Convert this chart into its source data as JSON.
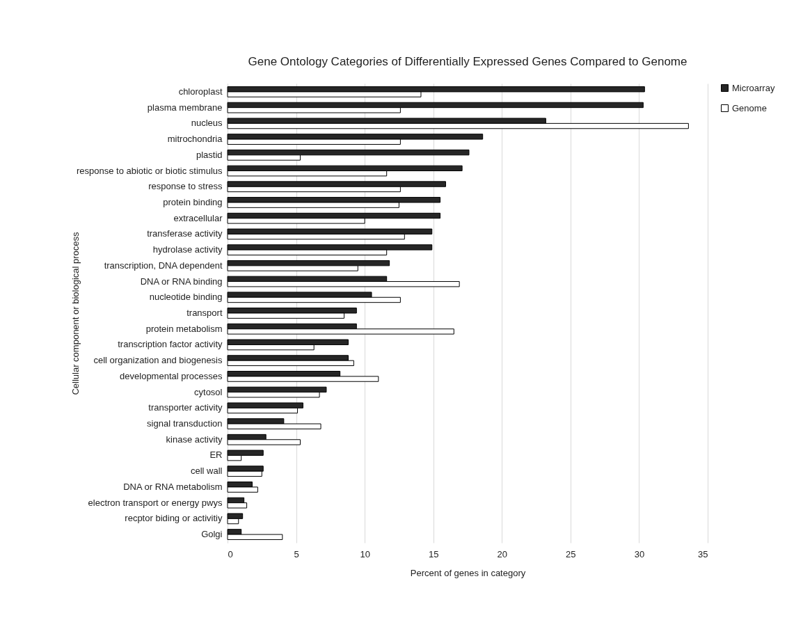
{
  "chart_data": {
    "type": "bar",
    "orientation": "horizontal",
    "title": "Gene Ontology Categories of Differentially Expressed Genes Compared to Genome",
    "xlabel": "Percent of genes in category",
    "ylabel": "Cellular component or biological process",
    "categories": [
      "chloroplast",
      "plasma membrane",
      "nucleus",
      "mitrochondria",
      "plastid",
      "response to abiotic or biotic stimulus",
      "response to stress",
      "protein binding",
      "extracellular",
      "transferase activity",
      "hydrolase activity",
      "transcription, DNA dependent",
      "DNA or RNA binding",
      "nucleotide binding",
      "transport",
      "protein metabolism",
      "transcription factor activity",
      "cell organization and biogenesis",
      "developmental processes",
      "cytosol",
      "transporter activity",
      "signal transduction",
      "kinase activity",
      "ER",
      "cell wall",
      "DNA or RNA metabolism",
      "electron transport or energy pwys",
      "recptor biding or activitiy",
      "Golgi"
    ],
    "series": [
      {
        "name": "Microarray",
        "color": "#262626",
        "values": [
          30.4,
          30.3,
          23.2,
          18.6,
          17.6,
          17.1,
          15.9,
          15.5,
          15.5,
          14.9,
          14.9,
          11.8,
          11.6,
          10.5,
          9.4,
          9.4,
          8.8,
          8.8,
          8.2,
          7.2,
          5.5,
          4.1,
          2.8,
          2.6,
          2.6,
          1.8,
          1.2,
          1.1,
          1.0
        ]
      },
      {
        "name": "Genome",
        "color": "#ffffff",
        "values": [
          14.1,
          12.6,
          33.6,
          12.6,
          5.3,
          11.6,
          12.6,
          12.5,
          10.0,
          12.9,
          11.6,
          9.5,
          16.9,
          12.6,
          8.5,
          16.5,
          6.3,
          9.2,
          11.0,
          6.7,
          5.1,
          6.8,
          5.3,
          1.0,
          2.5,
          2.2,
          1.4,
          0.8,
          4.0
        ]
      }
    ],
    "xlim": [
      0,
      35
    ],
    "xticks": [
      0,
      5,
      10,
      15,
      20,
      25,
      30,
      35
    ],
    "grid": "x",
    "legend": "right"
  }
}
